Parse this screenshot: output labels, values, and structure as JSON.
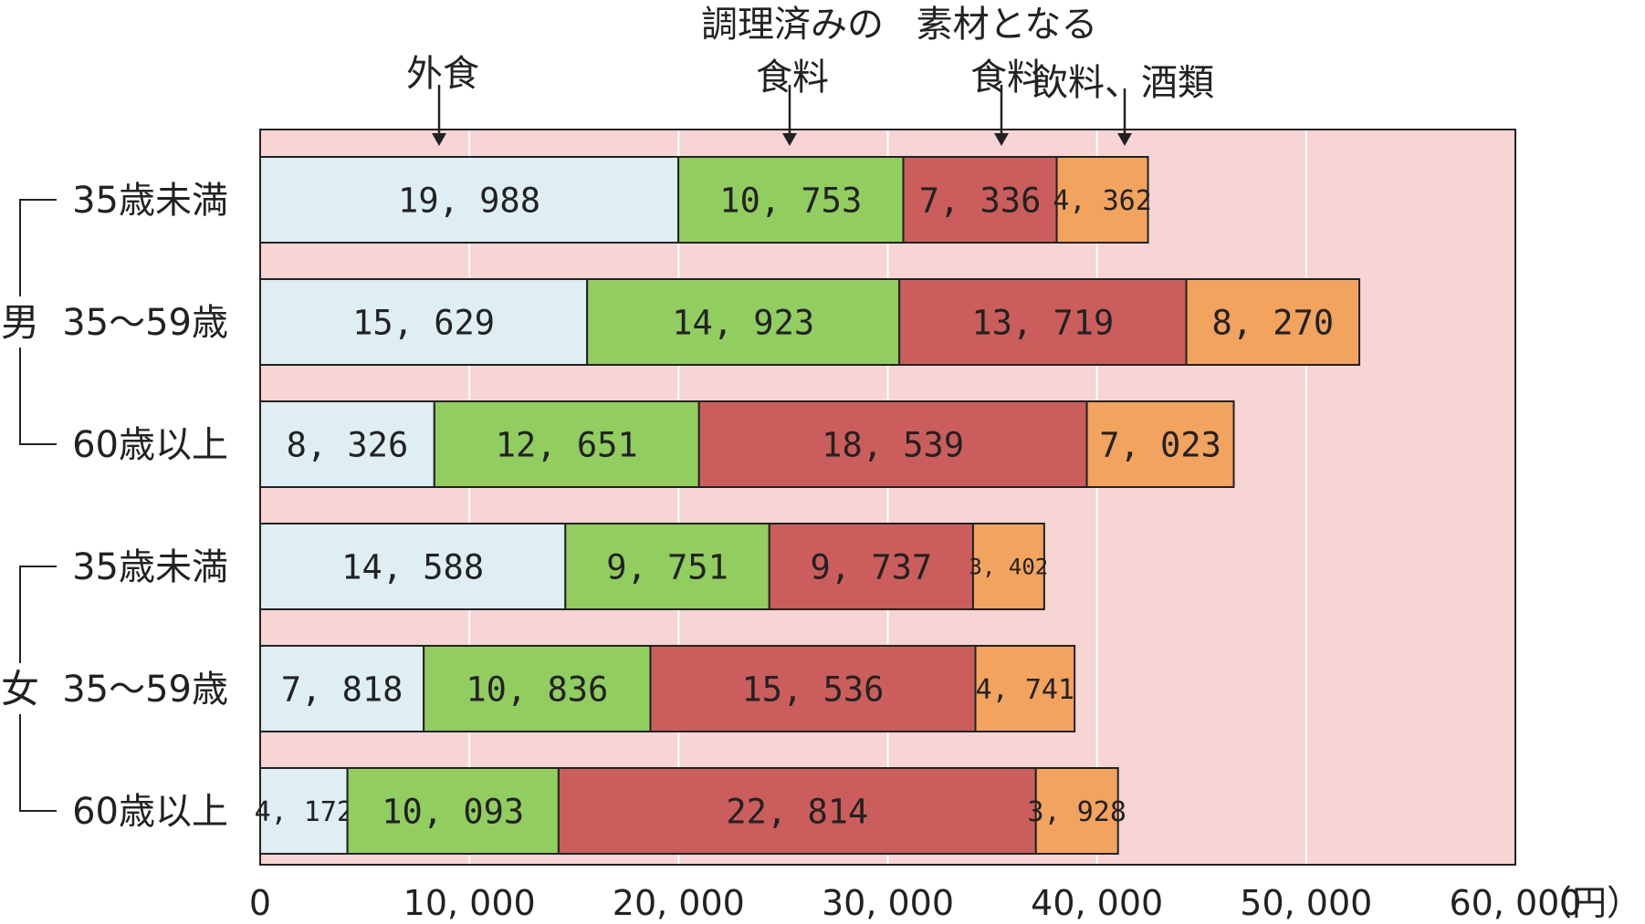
{
  "chart_data": {
    "type": "bar",
    "orientation": "horizontal",
    "stacked": true,
    "title": "",
    "xlabel": "",
    "ylabel": "",
    "unit": "（円）",
    "xlim": [
      0,
      60000
    ],
    "x_ticks": [
      0,
      10000,
      20000,
      30000,
      40000,
      50000,
      60000
    ],
    "x_tick_labels": [
      "0",
      "10, 000",
      "20, 000",
      "30, 000",
      "40, 000",
      "50, 000",
      "60, 000"
    ],
    "grid": true,
    "legend": "top, category names with arrows pointing to segments",
    "groups": [
      {
        "name": "男",
        "categories": [
          "35歳未満",
          "35～59歳",
          "60歳以上"
        ]
      },
      {
        "name": "女",
        "categories": [
          "35歳未満",
          "35～59歳",
          "60歳以上"
        ]
      }
    ],
    "categories": [
      "35歳未満",
      "35～59歳",
      "60歳以上",
      "35歳未満",
      "35～59歳",
      "60歳以上"
    ],
    "series": [
      {
        "name": "外食",
        "color": "#deeef3",
        "values": [
          19988,
          15629,
          8326,
          14588,
          7818,
          4172
        ],
        "labels": [
          "19, 988",
          "15, 629",
          "8, 326",
          "14, 588",
          "7, 818",
          "4, 172"
        ]
      },
      {
        "name": "調理済みの食料",
        "color": "#92cd60",
        "values": [
          10753,
          14923,
          12651,
          9751,
          10836,
          10093
        ],
        "labels": [
          "10, 753",
          "14, 923",
          "12, 651",
          "9, 751",
          "10, 836",
          "10, 093"
        ]
      },
      {
        "name": "素材となる食料",
        "color": "#cb5e5c",
        "values": [
          7336,
          13719,
          18539,
          9737,
          15536,
          22814
        ],
        "labels": [
          "7, 336",
          "13, 719",
          "18, 539",
          "9, 737",
          "15, 536",
          "22, 814"
        ]
      },
      {
        "name": "飲料、酒類",
        "color": "#f2a35e",
        "values": [
          4362,
          8270,
          7023,
          3402,
          4741,
          3928
        ],
        "labels": [
          "4, 362",
          "8, 270",
          "7, 023",
          "3, 402",
          "4, 741",
          "3, 928"
        ]
      }
    ],
    "legend_labels": [
      {
        "lines": [
          "外食"
        ]
      },
      {
        "lines": [
          "調理済みの",
          "食料"
        ]
      },
      {
        "lines": [
          "素材となる",
          "食料"
        ]
      },
      {
        "lines": [
          "飲料、酒類"
        ]
      }
    ],
    "colors": {
      "plot_bg": "#f7d5d5",
      "grid": "#ffffff",
      "border": "#222222"
    }
  }
}
